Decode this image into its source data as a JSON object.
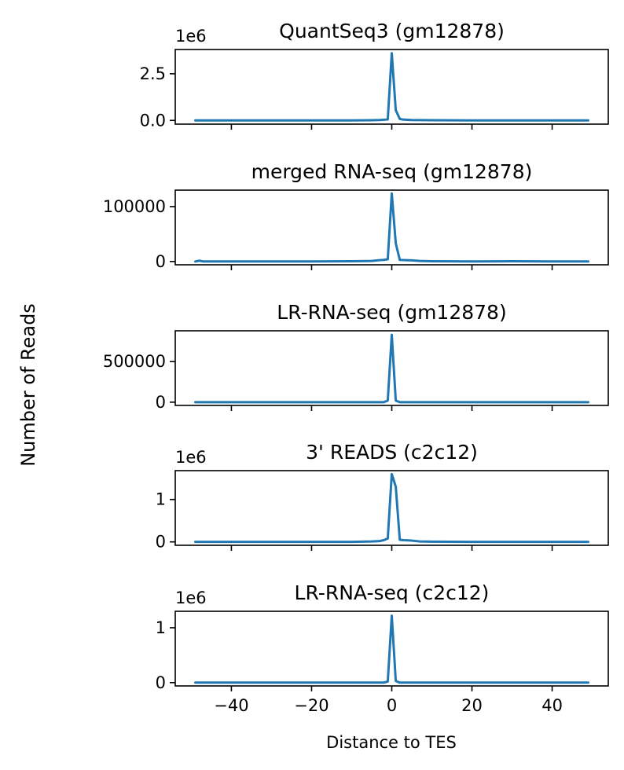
{
  "figure": {
    "ylabel": "Number of Reads",
    "xlabel": "Distance to TES"
  },
  "colors": {
    "line": "#1f77b4",
    "axes": "#000000",
    "background": "#ffffff"
  },
  "chart_data": [
    {
      "type": "line",
      "title": "QuantSeq3 (gm12878)",
      "offset_text": "1e6",
      "xlim": [
        -54,
        54
      ],
      "ylim": [
        -0.2,
        3.8
      ],
      "yticks": [
        0.0,
        2.5
      ],
      "yticklabels": [
        "0.0",
        "2.5"
      ],
      "x": [
        -49,
        -20,
        -10,
        -5,
        -3,
        -1,
        0,
        1,
        2,
        3,
        5,
        10,
        20,
        49
      ],
      "y": [
        0.0,
        0.0,
        0.0,
        0.01,
        0.02,
        0.05,
        3.6,
        0.55,
        0.08,
        0.04,
        0.02,
        0.01,
        0.0,
        0.0
      ]
    },
    {
      "type": "line",
      "title": "merged RNA-seq (gm12878)",
      "offset_text": "",
      "xlim": [
        -54,
        54
      ],
      "ylim": [
        -6000,
        130000
      ],
      "yticks": [
        0,
        100000
      ],
      "yticklabels": [
        "0",
        "100000"
      ],
      "x": [
        -49,
        -48,
        -47,
        -45,
        -40,
        -30,
        -20,
        -10,
        -5,
        -3,
        -2,
        -1,
        0,
        1,
        2,
        3,
        5,
        7,
        10,
        20,
        30,
        40,
        49
      ],
      "y": [
        0,
        1500,
        0,
        0,
        0,
        0,
        0,
        500,
        1000,
        2500,
        3000,
        4000,
        124000,
        33000,
        3000,
        2500,
        2000,
        1000,
        500,
        0,
        500,
        0,
        0
      ]
    },
    {
      "type": "line",
      "title": "LR-RNA-seq (gm12878)",
      "offset_text": "",
      "xlim": [
        -54,
        54
      ],
      "ylim": [
        -40000,
        880000
      ],
      "yticks": [
        0,
        500000
      ],
      "yticklabels": [
        "0",
        "500000"
      ],
      "x": [
        -49,
        -20,
        -10,
        -2,
        -1,
        0,
        1,
        2,
        10,
        20,
        49
      ],
      "y": [
        0,
        0,
        0,
        0,
        20000,
        830000,
        20000,
        0,
        0,
        0,
        0
      ]
    },
    {
      "type": "line",
      "title": "3' READS (c2c12)",
      "offset_text": "1e6",
      "xlim": [
        -54,
        54
      ],
      "ylim": [
        -0.08,
        1.68
      ],
      "yticks": [
        0,
        1
      ],
      "yticklabels": [
        "0",
        "1"
      ],
      "x": [
        -49,
        -20,
        -10,
        -5,
        -3,
        -2,
        -1,
        0,
        1,
        2,
        3,
        5,
        7,
        10,
        20,
        49
      ],
      "y": [
        0.0,
        0.0,
        0.0,
        0.01,
        0.02,
        0.04,
        0.08,
        1.6,
        1.3,
        0.05,
        0.04,
        0.03,
        0.01,
        0.005,
        0.0,
        0.0
      ]
    },
    {
      "type": "line",
      "title": "LR-RNA-seq (c2c12)",
      "offset_text": "1e6",
      "xlim": [
        -54,
        54
      ],
      "ylim": [
        -0.06,
        1.3
      ],
      "yticks": [
        0,
        1
      ],
      "yticklabels": [
        "0",
        "1"
      ],
      "x": [
        -49,
        -20,
        -10,
        -2,
        -1,
        0,
        1,
        2,
        10,
        20,
        49
      ],
      "y": [
        0.0,
        0.0,
        0.0,
        0.0,
        0.02,
        1.22,
        0.03,
        0.0,
        0.0,
        0.0,
        0.0
      ],
      "xticks": [
        -40,
        -20,
        0,
        20,
        40
      ],
      "xticklabels": [
        "−40",
        "−20",
        "0",
        "20",
        "40"
      ]
    }
  ]
}
